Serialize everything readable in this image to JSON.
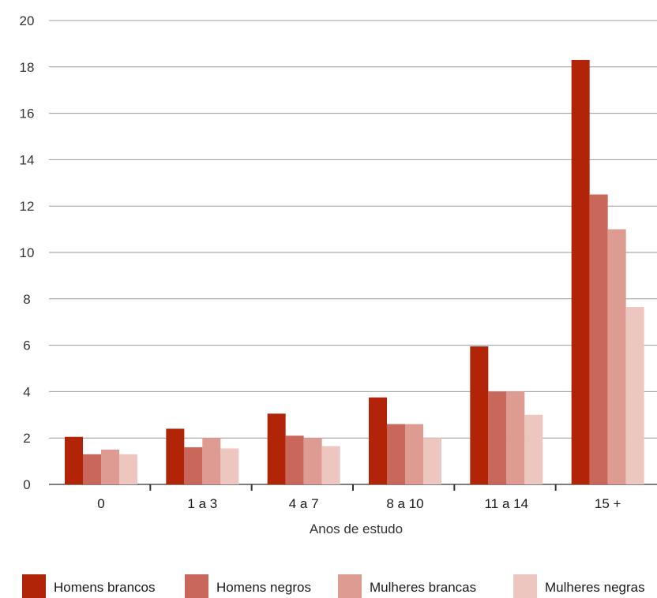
{
  "chart_data": {
    "type": "bar",
    "title": "",
    "xlabel": "Anos de estudo",
    "ylabel": "",
    "ylim": [
      0,
      20
    ],
    "yticks": [
      0,
      2,
      4,
      6,
      8,
      10,
      12,
      14,
      16,
      18,
      20
    ],
    "grid": true,
    "legend_position": "bottom",
    "categories": [
      "0",
      "1 a 3",
      "4 a 7",
      "8 a 10",
      "11 a 14",
      "15 +"
    ],
    "series": [
      {
        "name": "Homens brancos",
        "color": "#b22407",
        "values": [
          2.05,
          2.4,
          3.05,
          3.75,
          5.95,
          18.3
        ]
      },
      {
        "name": "Homens negros",
        "color": "#c9675a",
        "values": [
          1.3,
          1.6,
          2.1,
          2.6,
          4.0,
          12.5
        ]
      },
      {
        "name": "Mulheres brancas",
        "color": "#de9b92",
        "values": [
          1.5,
          2.0,
          2.0,
          2.6,
          4.0,
          11.0
        ]
      },
      {
        "name": "Mulheres negras",
        "color": "#eec6c0",
        "values": [
          1.3,
          1.55,
          1.65,
          2.0,
          3.0,
          7.65
        ]
      }
    ]
  }
}
